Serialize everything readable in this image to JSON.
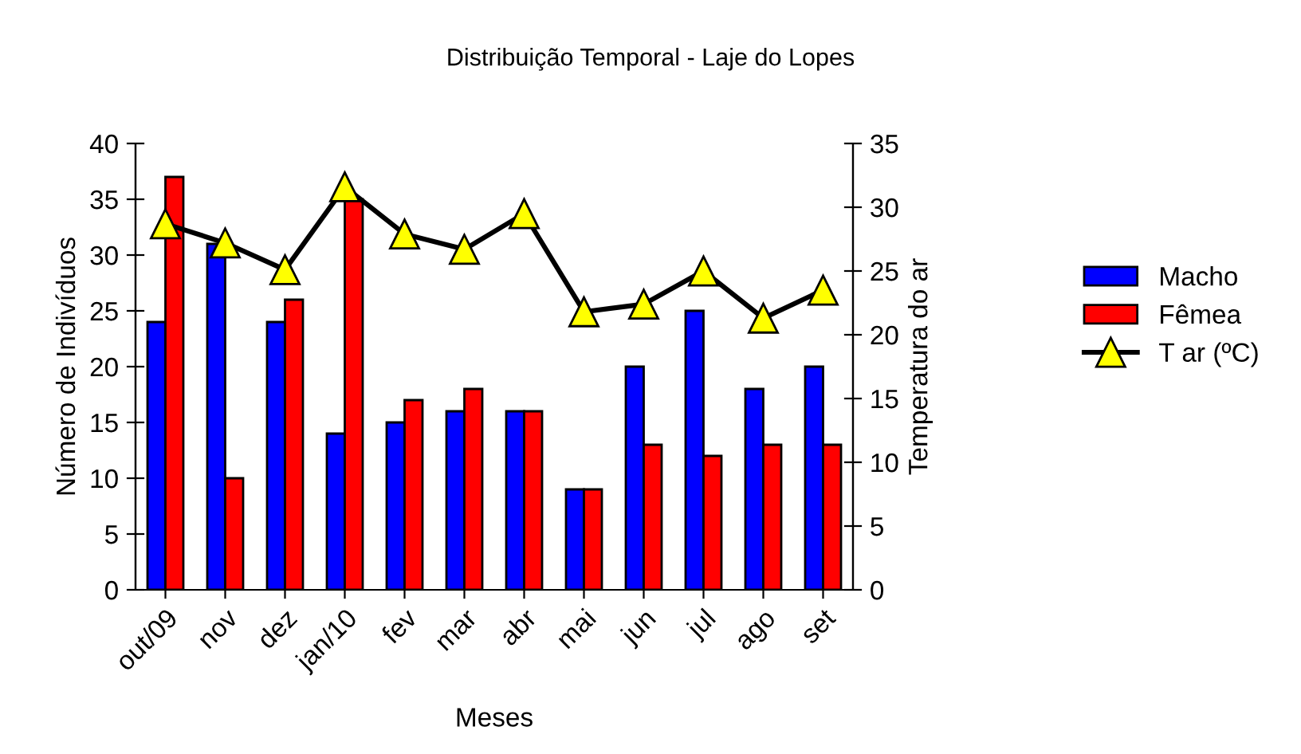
{
  "chart_data": {
    "type": "bar",
    "title": "Distribuição Temporal - Laje do Lopes",
    "xlabel": "Meses",
    "ylabel": "Número de Indivíduos",
    "y2label": "Temperatura do ar",
    "categories": [
      "out/09",
      "nov",
      "dez",
      "jan/10",
      "fev",
      "mar",
      "abr",
      "mai",
      "jun",
      "jul",
      "ago",
      "set"
    ],
    "series": [
      {
        "name": "Macho",
        "color": "#0000ff",
        "values": [
          24,
          31,
          24,
          14,
          15,
          16,
          16,
          9,
          20,
          25,
          18,
          20
        ]
      },
      {
        "name": "Fêmea",
        "color": "#ff0000",
        "values": [
          37,
          10,
          26,
          35,
          17,
          18,
          16,
          9,
          13,
          12,
          13,
          13
        ]
      },
      {
        "name": "T ar (ºC)",
        "type": "line",
        "axis": "y2",
        "color": "#000000",
        "marker": "triangle",
        "values": [
          28.7,
          27.2,
          25.1,
          31.6,
          27.9,
          26.7,
          29.5,
          21.8,
          22.4,
          25.0,
          21.3,
          23.5
        ]
      }
    ],
    "ylim": [
      0,
      40
    ],
    "yticks": [
      0,
      5,
      10,
      15,
      20,
      25,
      30,
      35,
      40
    ],
    "y2lim": [
      0,
      35
    ],
    "y2ticks": [
      0,
      5,
      10,
      15,
      20,
      25,
      30,
      35
    ],
    "grid": false,
    "legend": "right"
  }
}
